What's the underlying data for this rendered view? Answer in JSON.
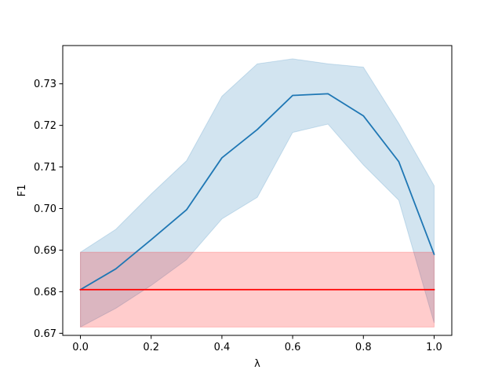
{
  "chart_data": {
    "type": "line",
    "title": "",
    "xlabel": "λ",
    "ylabel": "F1",
    "xlim": [
      -0.05,
      1.05
    ],
    "ylim": [
      0.6695,
      0.7392
    ],
    "x_ticks": [
      0.0,
      0.2,
      0.4,
      0.6,
      0.8,
      1.0
    ],
    "x_tick_labels": [
      "0.0",
      "0.2",
      "0.4",
      "0.6",
      "0.8",
      "1.0"
    ],
    "y_ticks": [
      0.67,
      0.68,
      0.69,
      0.7,
      0.71,
      0.72,
      0.73
    ],
    "y_tick_labels": [
      "0.67",
      "0.68",
      "0.69",
      "0.70",
      "0.71",
      "0.72",
      "0.73"
    ],
    "grid": false,
    "legend": "none",
    "series": [
      {
        "x": [
          0.0,
          0.1,
          0.2,
          0.3,
          0.4,
          0.5,
          0.6,
          0.7,
          0.8,
          0.9,
          1.0
        ],
        "values": [
          0.6805,
          0.6855,
          0.6925,
          0.6997,
          0.7122,
          0.719,
          0.7272,
          0.7276,
          0.7223,
          0.7113,
          0.689
        ],
        "lower": [
          0.6715,
          0.676,
          0.6815,
          0.6877,
          0.6975,
          0.7027,
          0.7183,
          0.7203,
          0.7105,
          0.702,
          0.6725
        ],
        "upper": [
          0.6895,
          0.695,
          0.7035,
          0.7115,
          0.727,
          0.7348,
          0.736,
          0.7348,
          0.734,
          0.7205,
          0.7055
        ],
        "color": "#1f77b4",
        "band_color": "#1f77b4"
      },
      {
        "x": [
          0.0,
          1.0
        ],
        "values": [
          0.6805,
          0.6805
        ],
        "lower": [
          0.6715,
          0.6715
        ],
        "upper": [
          0.6895,
          0.6895
        ],
        "color": "#ff0000",
        "band_color": "#ff0000"
      }
    ]
  }
}
